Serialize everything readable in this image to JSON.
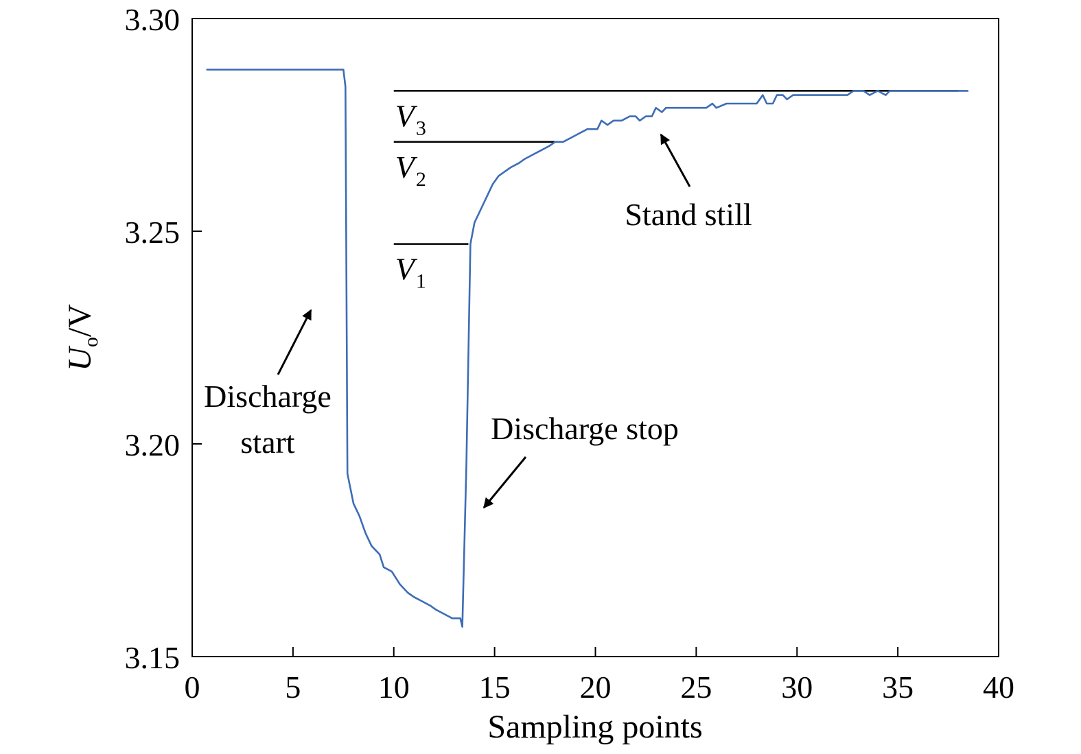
{
  "chart_data": {
    "type": "line",
    "title": "",
    "xlabel": "Sampling points",
    "ylabel_main": "U",
    "ylabel_sub": "o",
    "ylabel_unit": "/V",
    "xlim": [
      0,
      40
    ],
    "ylim": [
      3.15,
      3.3
    ],
    "xticks": [
      0,
      5,
      10,
      15,
      20,
      25,
      30,
      35,
      40
    ],
    "xtick_labels": [
      "0",
      "5",
      "10",
      "15",
      "20",
      "25",
      "30",
      "35",
      "40"
    ],
    "yticks": [
      3.15,
      3.2,
      3.25,
      3.3
    ],
    "ytick_labels": [
      "3.15",
      "3.20",
      "3.25",
      "3.30"
    ],
    "grid": false,
    "line_color": "#3d6db5",
    "series": [
      {
        "name": "Uo",
        "x": [
          0.7,
          7.5,
          7.6,
          7.7,
          8.0,
          8.3,
          8.6,
          8.9,
          9.3,
          9.5,
          9.9,
          10.3,
          10.7,
          11.0,
          11.4,
          11.8,
          12.1,
          12.5,
          12.9,
          13.3,
          13.4,
          13.6,
          13.8,
          14.0,
          14.3,
          14.6,
          14.9,
          15.2,
          15.5,
          15.8,
          16.2,
          16.5,
          16.9,
          17.3,
          17.7,
          18.0,
          18.4,
          18.8,
          19.2,
          19.6,
          20.1,
          20.3,
          20.6,
          20.9,
          21.3,
          21.7,
          22.0,
          22.2,
          22.5,
          22.8,
          23.0,
          23.3,
          23.5,
          24.0,
          24.5,
          25.0,
          25.5,
          25.8,
          26.0,
          26.5,
          27.0,
          27.5,
          28.0,
          28.3,
          28.5,
          28.8,
          29.0,
          29.3,
          29.5,
          29.8,
          30.0,
          30.5,
          31.0,
          31.5,
          32.0,
          32.5,
          32.8,
          33.0,
          33.3,
          33.6,
          34.0,
          34.4,
          34.6,
          35.0,
          35.5,
          36.0,
          36.5,
          37.0,
          37.5,
          38.0,
          38.5
        ],
        "values": [
          3.288,
          3.288,
          3.284,
          3.193,
          3.186,
          3.183,
          3.179,
          3.176,
          3.174,
          3.171,
          3.17,
          3.167,
          3.165,
          3.164,
          3.163,
          3.162,
          3.161,
          3.16,
          3.159,
          3.159,
          3.157,
          3.195,
          3.247,
          3.252,
          3.255,
          3.258,
          3.261,
          3.263,
          3.264,
          3.265,
          3.266,
          3.267,
          3.268,
          3.269,
          3.27,
          3.271,
          3.271,
          3.272,
          3.273,
          3.274,
          3.274,
          3.276,
          3.275,
          3.276,
          3.276,
          3.277,
          3.277,
          3.276,
          3.277,
          3.277,
          3.279,
          3.278,
          3.279,
          3.279,
          3.279,
          3.279,
          3.279,
          3.28,
          3.279,
          3.28,
          3.28,
          3.28,
          3.28,
          3.282,
          3.28,
          3.28,
          3.282,
          3.282,
          3.281,
          3.282,
          3.282,
          3.282,
          3.282,
          3.282,
          3.282,
          3.282,
          3.283,
          3.283,
          3.283,
          3.282,
          3.283,
          3.282,
          3.283,
          3.283,
          3.283,
          3.283,
          3.283,
          3.283,
          3.283,
          3.283,
          3.283
        ]
      }
    ],
    "reference_lines": [
      {
        "label": "V",
        "subscript": "3",
        "y": 3.283,
        "x_start": 10.0,
        "x_end": 38.0
      },
      {
        "label": "V",
        "subscript": "2",
        "y": 3.271,
        "x_start": 10.0,
        "x_end": 18.0
      },
      {
        "label": "V",
        "subscript": "1",
        "y": 3.247,
        "x_start": 10.0,
        "x_end": 13.7
      }
    ],
    "annotations": [
      {
        "id": "discharge-start",
        "lines": [
          "Discharge",
          "start"
        ]
      },
      {
        "id": "discharge-stop",
        "lines": [
          "Discharge stop"
        ]
      },
      {
        "id": "stand-still",
        "lines": [
          "Stand still"
        ]
      }
    ]
  }
}
